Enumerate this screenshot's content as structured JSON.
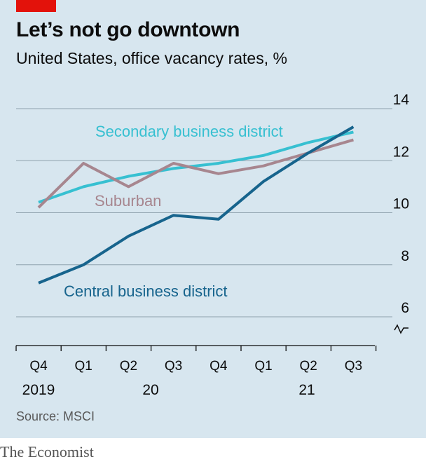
{
  "header": {
    "title": "Let’s not go downtown",
    "subtitle": "United States, office vacancy rates, %"
  },
  "source": "Source: MSCI",
  "brand": "The Economist",
  "colors": {
    "background": "#d7e6ef",
    "accent_red": "#e3120b",
    "secondary": "#37c0d1",
    "suburban": "#a7868f",
    "central": "#17648d",
    "grid": "#8fa2ad",
    "axis": "#0c0c0c"
  },
  "chart_data": {
    "type": "line",
    "categories": [
      "Q4",
      "Q1",
      "Q2",
      "Q3",
      "Q4",
      "Q1",
      "Q2",
      "Q3"
    ],
    "years": [
      {
        "label": "2019",
        "start_index": 0
      },
      {
        "label": "20",
        "start_index": 1
      },
      {
        "label": "21",
        "start_index": 5
      }
    ],
    "series": [
      {
        "name": "Secondary business district",
        "color": "#37c0d1",
        "values": [
          10.4,
          11.0,
          11.4,
          11.7,
          11.9,
          12.2,
          12.7,
          13.1
        ]
      },
      {
        "name": "Suburban",
        "color": "#a7868f",
        "values": [
          10.2,
          11.9,
          11.0,
          11.9,
          11.5,
          11.8,
          12.3,
          12.8
        ]
      },
      {
        "name": "Central business district",
        "color": "#17648d",
        "values": [
          7.3,
          8.0,
          9.1,
          9.9,
          9.75,
          11.2,
          12.3,
          13.3
        ]
      }
    ],
    "yticks": [
      6,
      8,
      10,
      12,
      14
    ],
    "ylim": [
      6,
      14
    ],
    "axis_break": true,
    "grid": true,
    "y_axis_side": "right"
  }
}
